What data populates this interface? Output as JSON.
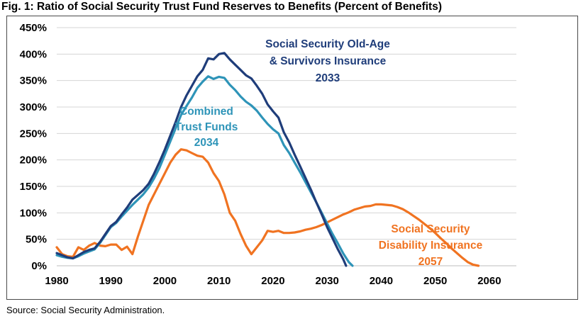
{
  "title": "Fig. 1: Ratio of Social Security Trust Fund Reserves to Benefits (Percent of Benefits)",
  "source": "Source: Social Security Administration.",
  "chart_data": {
    "type": "line",
    "title": "Fig. 1: Ratio of Social Security Trust Fund Reserves to Benefits (Percent of Benefits)",
    "xlabel": "",
    "ylabel": "",
    "xlim": [
      1980,
      2065
    ],
    "ylim": [
      0,
      450
    ],
    "grid": true,
    "x_ticks": [
      1980,
      1990,
      2000,
      2010,
      2020,
      2030,
      2040,
      2050,
      2060
    ],
    "x_tick_labels": [
      "1980",
      "1990",
      "2000",
      "2010",
      "2020",
      "2030",
      "2040",
      "2050",
      "2060"
    ],
    "y_ticks": [
      0,
      50,
      100,
      150,
      200,
      250,
      300,
      350,
      400,
      450
    ],
    "y_tick_labels": [
      "0%",
      "50%",
      "100%",
      "150%",
      "200%",
      "250%",
      "300%",
      "350%",
      "400%",
      "450%"
    ],
    "series": [
      {
        "key": "oasi",
        "name": "Social Security Old-Age & Survivors Insurance",
        "color": "#1f3d7a",
        "label_lines": [
          "Social Security Old-Age",
          "& Survivors Insurance",
          "2033"
        ],
        "points": [
          [
            1980,
            24
          ],
          [
            1981,
            20
          ],
          [
            1982,
            16
          ],
          [
            1983,
            14
          ],
          [
            1984,
            20
          ],
          [
            1985,
            26
          ],
          [
            1986,
            30
          ],
          [
            1987,
            33
          ],
          [
            1988,
            45
          ],
          [
            1989,
            60
          ],
          [
            1990,
            75
          ],
          [
            1991,
            83
          ],
          [
            1992,
            97
          ],
          [
            1993,
            110
          ],
          [
            1994,
            125
          ],
          [
            1995,
            134
          ],
          [
            1996,
            143
          ],
          [
            1997,
            155
          ],
          [
            1998,
            174
          ],
          [
            1999,
            196
          ],
          [
            2000,
            220
          ],
          [
            2001,
            246
          ],
          [
            2002,
            272
          ],
          [
            2003,
            300
          ],
          [
            2004,
            322
          ],
          [
            2005,
            340
          ],
          [
            2006,
            358
          ],
          [
            2007,
            370
          ],
          [
            2008,
            392
          ],
          [
            2009,
            390
          ],
          [
            2010,
            400
          ],
          [
            2011,
            402
          ],
          [
            2012,
            390
          ],
          [
            2013,
            380
          ],
          [
            2014,
            370
          ],
          [
            2015,
            360
          ],
          [
            2016,
            354
          ],
          [
            2017,
            340
          ],
          [
            2018,
            325
          ],
          [
            2019,
            305
          ],
          [
            2020,
            292
          ],
          [
            2021,
            280
          ],
          [
            2022,
            252
          ],
          [
            2023,
            233
          ],
          [
            2024,
            210
          ],
          [
            2025,
            188
          ],
          [
            2026,
            166
          ],
          [
            2027,
            144
          ],
          [
            2028,
            120
          ],
          [
            2029,
            97
          ],
          [
            2030,
            73
          ],
          [
            2031,
            52
          ],
          [
            2032,
            31
          ],
          [
            2033,
            12
          ],
          [
            2033.5,
            0
          ]
        ]
      },
      {
        "key": "combined",
        "name": "Combined Trust Funds",
        "color": "#2e94b8",
        "label_lines": [
          "Combined",
          "Trust Funds",
          "2034"
        ],
        "points": [
          [
            1980,
            20
          ],
          [
            1981,
            17
          ],
          [
            1982,
            15
          ],
          [
            1983,
            14
          ],
          [
            1984,
            18
          ],
          [
            1985,
            23
          ],
          [
            1986,
            27
          ],
          [
            1987,
            31
          ],
          [
            1988,
            43
          ],
          [
            1989,
            58
          ],
          [
            1990,
            73
          ],
          [
            1991,
            81
          ],
          [
            1992,
            93
          ],
          [
            1993,
            104
          ],
          [
            1994,
            115
          ],
          [
            1995,
            125
          ],
          [
            1996,
            135
          ],
          [
            1997,
            148
          ],
          [
            1998,
            165
          ],
          [
            1999,
            185
          ],
          [
            2000,
            210
          ],
          [
            2001,
            235
          ],
          [
            2002,
            260
          ],
          [
            2003,
            285
          ],
          [
            2004,
            302
          ],
          [
            2005,
            318
          ],
          [
            2006,
            336
          ],
          [
            2007,
            348
          ],
          [
            2008,
            358
          ],
          [
            2009,
            353
          ],
          [
            2010,
            357
          ],
          [
            2011,
            355
          ],
          [
            2012,
            342
          ],
          [
            2013,
            332
          ],
          [
            2014,
            320
          ],
          [
            2015,
            310
          ],
          [
            2016,
            303
          ],
          [
            2017,
            293
          ],
          [
            2018,
            280
          ],
          [
            2019,
            268
          ],
          [
            2020,
            258
          ],
          [
            2021,
            250
          ],
          [
            2022,
            228
          ],
          [
            2023,
            213
          ],
          [
            2024,
            195
          ],
          [
            2025,
            177
          ],
          [
            2026,
            158
          ],
          [
            2027,
            139
          ],
          [
            2028,
            120
          ],
          [
            2029,
            100
          ],
          [
            2030,
            80
          ],
          [
            2031,
            60
          ],
          [
            2032,
            42
          ],
          [
            2033,
            23
          ],
          [
            2034,
            7
          ],
          [
            2034.7,
            0
          ]
        ]
      },
      {
        "key": "di",
        "name": "Social Security Disability Insurance",
        "color": "#f07321",
        "label_lines": [
          "Social Security",
          "Disability Insurance",
          "2057"
        ],
        "points": [
          [
            1980,
            35
          ],
          [
            1981,
            22
          ],
          [
            1982,
            18
          ],
          [
            1983,
            17
          ],
          [
            1984,
            35
          ],
          [
            1985,
            30
          ],
          [
            1986,
            38
          ],
          [
            1987,
            43
          ],
          [
            1988,
            38
          ],
          [
            1989,
            37
          ],
          [
            1990,
            40
          ],
          [
            1991,
            40
          ],
          [
            1992,
            30
          ],
          [
            1993,
            36
          ],
          [
            1994,
            22
          ],
          [
            1995,
            55
          ],
          [
            1996,
            85
          ],
          [
            1997,
            115
          ],
          [
            1998,
            135
          ],
          [
            1999,
            155
          ],
          [
            2000,
            175
          ],
          [
            2001,
            195
          ],
          [
            2002,
            210
          ],
          [
            2003,
            220
          ],
          [
            2004,
            218
          ],
          [
            2005,
            213
          ],
          [
            2006,
            208
          ],
          [
            2007,
            206
          ],
          [
            2008,
            195
          ],
          [
            2009,
            175
          ],
          [
            2010,
            160
          ],
          [
            2011,
            135
          ],
          [
            2012,
            100
          ],
          [
            2013,
            85
          ],
          [
            2014,
            60
          ],
          [
            2015,
            38
          ],
          [
            2016,
            22
          ],
          [
            2017,
            35
          ],
          [
            2018,
            48
          ],
          [
            2019,
            66
          ],
          [
            2020,
            64
          ],
          [
            2021,
            66
          ],
          [
            2022,
            62
          ],
          [
            2023,
            62
          ],
          [
            2024,
            63
          ],
          [
            2025,
            65
          ],
          [
            2026,
            68
          ],
          [
            2027,
            70
          ],
          [
            2028,
            73
          ],
          [
            2029,
            77
          ],
          [
            2030,
            82
          ],
          [
            2031,
            87
          ],
          [
            2032,
            92
          ],
          [
            2033,
            97
          ],
          [
            2034,
            101
          ],
          [
            2035,
            106
          ],
          [
            2036,
            109
          ],
          [
            2037,
            112
          ],
          [
            2038,
            113
          ],
          [
            2039,
            116
          ],
          [
            2040,
            116
          ],
          [
            2041,
            115
          ],
          [
            2042,
            114
          ],
          [
            2043,
            111
          ],
          [
            2044,
            107
          ],
          [
            2045,
            101
          ],
          [
            2046,
            94
          ],
          [
            2047,
            87
          ],
          [
            2048,
            79
          ],
          [
            2049,
            71
          ],
          [
            2050,
            62
          ],
          [
            2051,
            52
          ],
          [
            2052,
            43
          ],
          [
            2053,
            33
          ],
          [
            2054,
            24
          ],
          [
            2055,
            15
          ],
          [
            2056,
            7
          ],
          [
            2057,
            2
          ],
          [
            2058,
            0
          ]
        ]
      }
    ]
  }
}
